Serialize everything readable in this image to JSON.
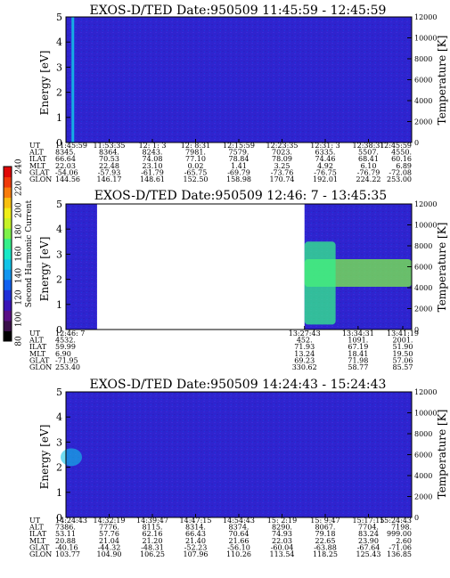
{
  "chart_data": {
    "type": "heatmap",
    "colorbar": {
      "label": "Second Harmonic Current",
      "ticks": [
        80,
        100,
        120,
        140,
        160,
        180,
        200,
        220,
        240
      ],
      "range": [
        80,
        240
      ],
      "colors": [
        "#000000",
        "#3a0f4a",
        "#5a0f86",
        "#3a14b8",
        "#1f2fd8",
        "#1060f0",
        "#1196f0",
        "#12c4e8",
        "#18e8c8",
        "#36f08a",
        "#7ef24a",
        "#c6f228",
        "#f0ee18",
        "#f8c010",
        "#f87c0c",
        "#f03a0a",
        "#e00808"
      ]
    },
    "panels": [
      {
        "title": "EXOS-D/TED   Date:950509   11:45:59 - 12:45:59",
        "ylabel": "Energy [eV]",
        "y2label": "Temperature [K]",
        "ylim": [
          0,
          5
        ],
        "y2lim": [
          0,
          12000
        ],
        "yticks": [
          "0",
          "1",
          "2",
          "3",
          "4",
          "5"
        ],
        "y2ticks": [
          "0",
          "2000",
          "4000",
          "6000",
          "8000",
          "10000",
          "12000"
        ],
        "row_labels": [
          "UT",
          "ALT",
          "ILAT",
          "MLT",
          "GLAT",
          "GLON"
        ],
        "columns": [
          [
            "11:45:59",
            "8345.",
            "66.64",
            "22.03",
            "-54.06",
            "144.56"
          ],
          [
            "11:53:35",
            "8364.",
            "70.53",
            "22.48",
            "-57.93",
            "146.17"
          ],
          [
            "12: 1: 3",
            "8243.",
            "74.08",
            "23.10",
            "-61.79",
            "148.61"
          ],
          [
            "12: 8:31",
            "7981.",
            "77.10",
            "0.02",
            "-65.75",
            "152.50"
          ],
          [
            "12:15:59",
            "7579.",
            "78.84",
            "1.41",
            "-69.79",
            "158.98"
          ],
          [
            "12:23:35",
            "7023.",
            "78.09",
            "3.25",
            "-73.76",
            "170.74"
          ],
          [
            "12:31: 3",
            "6335.",
            "74.46",
            "4.92",
            "-76.75",
            "192.01"
          ],
          [
            "12:38:31",
            "5507.",
            "68.41",
            "6.10",
            "-76.79",
            "224.22"
          ],
          [
            "12:45:59",
            "4550.",
            "60.16",
            "6.89",
            "-72.08",
            "253.00"
          ]
        ],
        "coverage": [
          [
            0,
            1
          ]
        ],
        "features": [
          {
            "kind": "streak",
            "x": 0.02,
            "level": 150
          }
        ]
      },
      {
        "title": "EXOS-D/TED   Date:950509   12:46: 7 - 13:45:35",
        "ylabel": "Energy [eV]",
        "y2label": "Temperature [K]",
        "ylim": [
          0,
          5
        ],
        "y2lim": [
          0,
          12000
        ],
        "yticks": [
          "0",
          "1",
          "2",
          "3",
          "4",
          "5"
        ],
        "y2ticks": [
          "0",
          "2000",
          "4000",
          "6000",
          "8000",
          "10000",
          "12000"
        ],
        "row_labels": [
          "UT",
          "ALT",
          "ILAT",
          "MLT",
          "GLAT",
          "GLON"
        ],
        "columns": [
          [
            "12:46: 7",
            "4532.",
            "59.99",
            "6.90",
            "-71.95",
            "253.40"
          ],
          [
            "13:27:43",
            "452.",
            "71.93",
            "13.24",
            "69.23",
            "330.62"
          ],
          [
            "13:34:31",
            "1091.",
            "67.19",
            "18.41",
            "71.98",
            "58.77"
          ],
          [
            "13:41:19",
            "2001.",
            "51.90",
            "19.50",
            "57.06",
            "85.57"
          ]
        ],
        "coverage": [
          [
            0,
            0.09
          ],
          [
            0.69,
            1
          ]
        ],
        "features": [
          {
            "kind": "band",
            "x0": 0.69,
            "x1": 1.0,
            "y0": 1.7,
            "y1": 2.8,
            "level": 175
          },
          {
            "kind": "band",
            "x0": 0.69,
            "x1": 0.78,
            "y0": 0.2,
            "y1": 3.5,
            "level": 165
          }
        ]
      },
      {
        "title": "EXOS-D/TED   Date:950509   14:24:43 - 15:24:43",
        "ylabel": "Energy [eV]",
        "y2label": "Temperature [K]",
        "ylim": [
          0,
          5
        ],
        "y2lim": [
          0,
          12000
        ],
        "yticks": [
          "0",
          "1",
          "2",
          "3",
          "4",
          "5"
        ],
        "y2ticks": [
          "0",
          "2000",
          "4000",
          "6000",
          "8000",
          "10000",
          "12000"
        ],
        "row_labels": [
          "UT",
          "ALT",
          "ILAT",
          "MLT",
          "GLAT",
          "GLON"
        ],
        "columns": [
          [
            "14:24:43",
            "7386.",
            "53.11",
            "20.88",
            "-40.16",
            "103.77"
          ],
          [
            "14:32:19",
            "7776.",
            "57.76",
            "21.04",
            "-44.32",
            "104.90"
          ],
          [
            "14:39:47",
            "8115.",
            "62.16",
            "21.20",
            "-48.31",
            "106.25"
          ],
          [
            "14:47:15",
            "8314.",
            "66.43",
            "21.40",
            "-52.23",
            "107.96"
          ],
          [
            "14:54:43",
            "8374.",
            "70.64",
            "21.66",
            "-56.10",
            "110.26"
          ],
          [
            "15: 2:19",
            "8290.",
            "74.93",
            "22.03",
            "-60.04",
            "113.54"
          ],
          [
            "15: 9:47",
            "8067.",
            "79.18",
            "22.65",
            "-63.88",
            "118.25"
          ],
          [
            "15:17:15",
            "7704.",
            "83.24",
            "23.90",
            "-67.64",
            "125.43"
          ],
          [
            "15:24:43",
            "7198.",
            "999.00",
            "2.60",
            "-71.06",
            "136.85"
          ]
        ],
        "coverage": [
          [
            0,
            1
          ]
        ],
        "features": [
          {
            "kind": "blob",
            "x": 0.0,
            "y": 2.4,
            "level": 150
          }
        ]
      }
    ]
  }
}
